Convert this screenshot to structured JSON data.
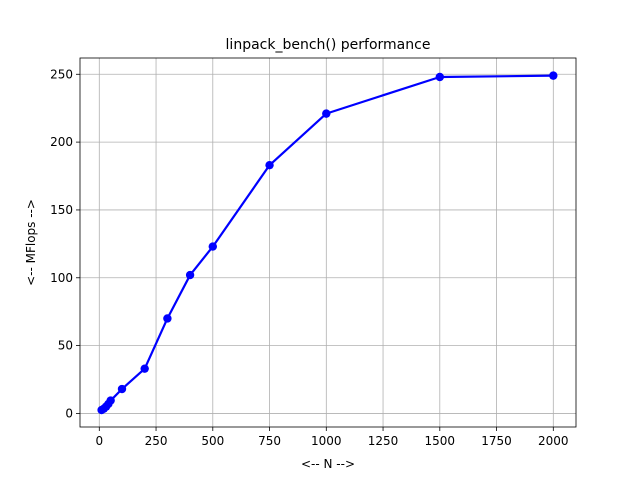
{
  "chart_data": {
    "type": "line",
    "title": "linpack_bench() performance",
    "xlabel": "<-- N -->",
    "ylabel": "<-- MFlops -->",
    "xlim": [
      -85,
      2100
    ],
    "ylim": [
      -10,
      262
    ],
    "xticks": [
      0,
      250,
      500,
      750,
      1000,
      1250,
      1500,
      1750,
      2000
    ],
    "yticks": [
      0,
      50,
      100,
      150,
      200,
      250
    ],
    "grid": true,
    "line_color": "#0000ff",
    "series": [
      {
        "x": [
          10,
          20,
          30,
          40,
          50,
          100,
          200,
          300,
          400,
          500,
          750,
          1000,
          1500,
          2000
        ],
        "y": [
          2.5,
          3.5,
          5,
          7,
          9.5,
          18,
          33,
          70,
          102,
          123,
          183,
          221,
          248,
          249
        ]
      }
    ]
  }
}
